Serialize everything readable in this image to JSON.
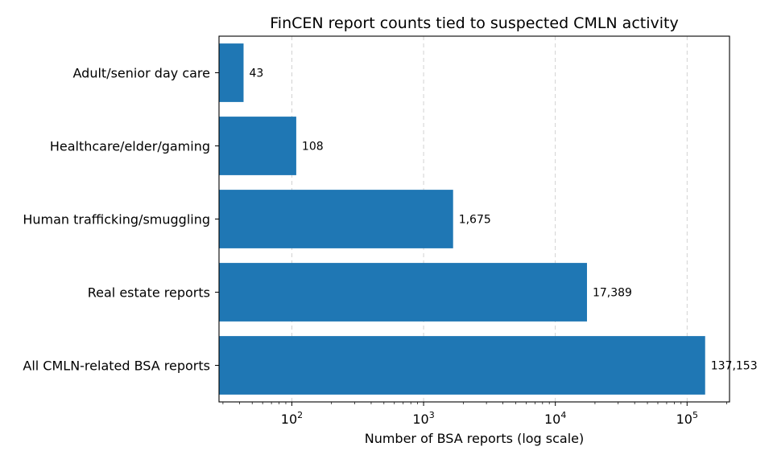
{
  "chart_data": {
    "type": "bar",
    "orientation": "horizontal",
    "title": "FinCEN report counts tied to suspected CMLN activity",
    "xlabel": "Number of BSA reports (log scale)",
    "ylabel": "",
    "xscale": "log",
    "xlim": [
      28,
      210000
    ],
    "x_ticks": [
      {
        "base": "10",
        "exp": "2",
        "value": 100
      },
      {
        "base": "10",
        "exp": "3",
        "value": 1000
      },
      {
        "base": "10",
        "exp": "4",
        "value": 10000
      },
      {
        "base": "10",
        "exp": "5",
        "value": 100000
      }
    ],
    "grid": "x-major-dashed",
    "legend": "none",
    "bar_color": "#1f77b4",
    "categories": [
      "Adult/senior day care",
      "Healthcare/elder/gaming",
      "Human trafficking/smuggling",
      "Real estate reports",
      "All CMLN-related BSA reports"
    ],
    "values": [
      43,
      108,
      1675,
      17389,
      137153
    ],
    "value_labels": [
      "43",
      "108",
      "1,675",
      "17,389",
      "137,153"
    ]
  }
}
